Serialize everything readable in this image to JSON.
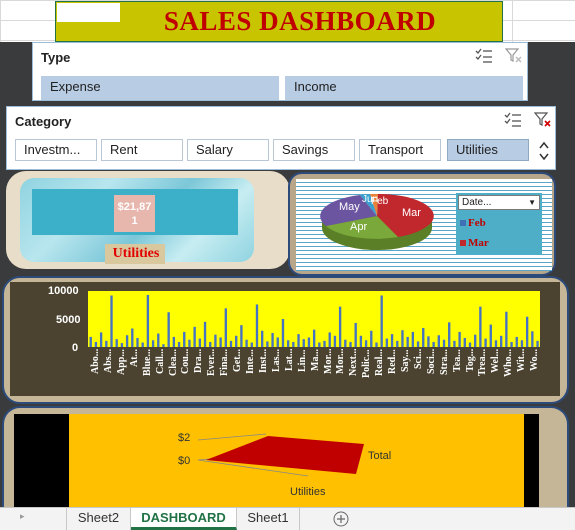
{
  "dashboard": {
    "title": "SALES DASHBOARD"
  },
  "type_slicer": {
    "header": "Type",
    "items": [
      "Expense",
      "Income"
    ]
  },
  "category_slicer": {
    "header": "Category",
    "items": [
      "Investm...",
      "Rent",
      "Salary",
      "Savings",
      "Transport",
      "Utilities"
    ],
    "selected": "Utilities"
  },
  "kpi": {
    "value_line1": "$21,87",
    "value_line2": "1",
    "label": "Utilities"
  },
  "pie_chart": {
    "slice_labels": [
      "May",
      "Jun",
      "Feb",
      "Mar",
      "Apr"
    ],
    "filter_label": "Date...",
    "legend": [
      "Feb",
      "Mar"
    ]
  },
  "bar_chart": {
    "y_ticks": [
      "10000",
      "5000",
      "0"
    ],
    "x_labels": [
      "Abo...",
      "Abs...",
      "App...",
      "At...",
      "Blue...",
      "Call...",
      "Clea...",
      "Cou...",
      "Dra...",
      "Ever...",
      "Fina...",
      "Get...",
      "Inte...",
      "Inst...",
      "Las...",
      "Lat...",
      "Lin...",
      "Ma...",
      "Mor...",
      "Mor...",
      "Next...",
      "Polic...",
      "Real...",
      "Red...",
      "Say...",
      "Sci...",
      "Soci...",
      "Stra...",
      "Tea...",
      "Tog...",
      "Trea...",
      "Wel...",
      "Who...",
      "Wit...",
      "Wo..."
    ],
    "values": [
      1800,
      900,
      2600,
      1100,
      9200,
      1400,
      700,
      2100,
      3300,
      1600,
      800,
      9300,
      1200,
      2400,
      500,
      6200,
      1800,
      900,
      2700,
      1300,
      3600,
      1500,
      4500,
      900,
      2200,
      1700,
      6900,
      1100,
      2000,
      3900,
      1300,
      800,
      7600,
      2900,
      1000,
      2500,
      1700,
      5000,
      1200,
      900,
      2300,
      1400,
      1700,
      3100,
      800,
      1100,
      2600,
      2000,
      7200,
      1300,
      900,
      4300,
      2000,
      1200,
      2900,
      800,
      9200,
      1500,
      2300,
      1100,
      3000,
      1800,
      2700,
      1000,
      3400,
      1900,
      900,
      2100,
      1300,
      4400,
      1100,
      2700,
      1600,
      800,
      2200,
      7200,
      1500,
      4000,
      1200,
      2000,
      6300,
      900,
      1800,
      1200,
      5400,
      2800,
      1100
    ]
  },
  "combo_chart": {
    "y_ticks": [
      "$2",
      "$0"
    ],
    "series_label": "Total",
    "category_label": "Utilities"
  },
  "sheet_tabs": {
    "tabs": [
      "Sheet2",
      "DASHBOARD",
      "Sheet1"
    ],
    "active": "DASHBOARD"
  },
  "icons": {
    "multiselect": "multiselect-icon",
    "clear_filter": "clear-filter-icon",
    "scroll_up": "chevron-up-icon",
    "scroll_down": "chevron-down-icon",
    "add_sheet": "add-sheet-icon",
    "tab_scroll": "tab-scroll-left-icon"
  },
  "colors": {
    "accent": "#217346",
    "title_bg": "#c8c400",
    "title_text": "#c00000",
    "bar_plot_bg": "#ffff00",
    "bar_fill": "#4472c4",
    "combo_bg": "#ffc000"
  }
}
